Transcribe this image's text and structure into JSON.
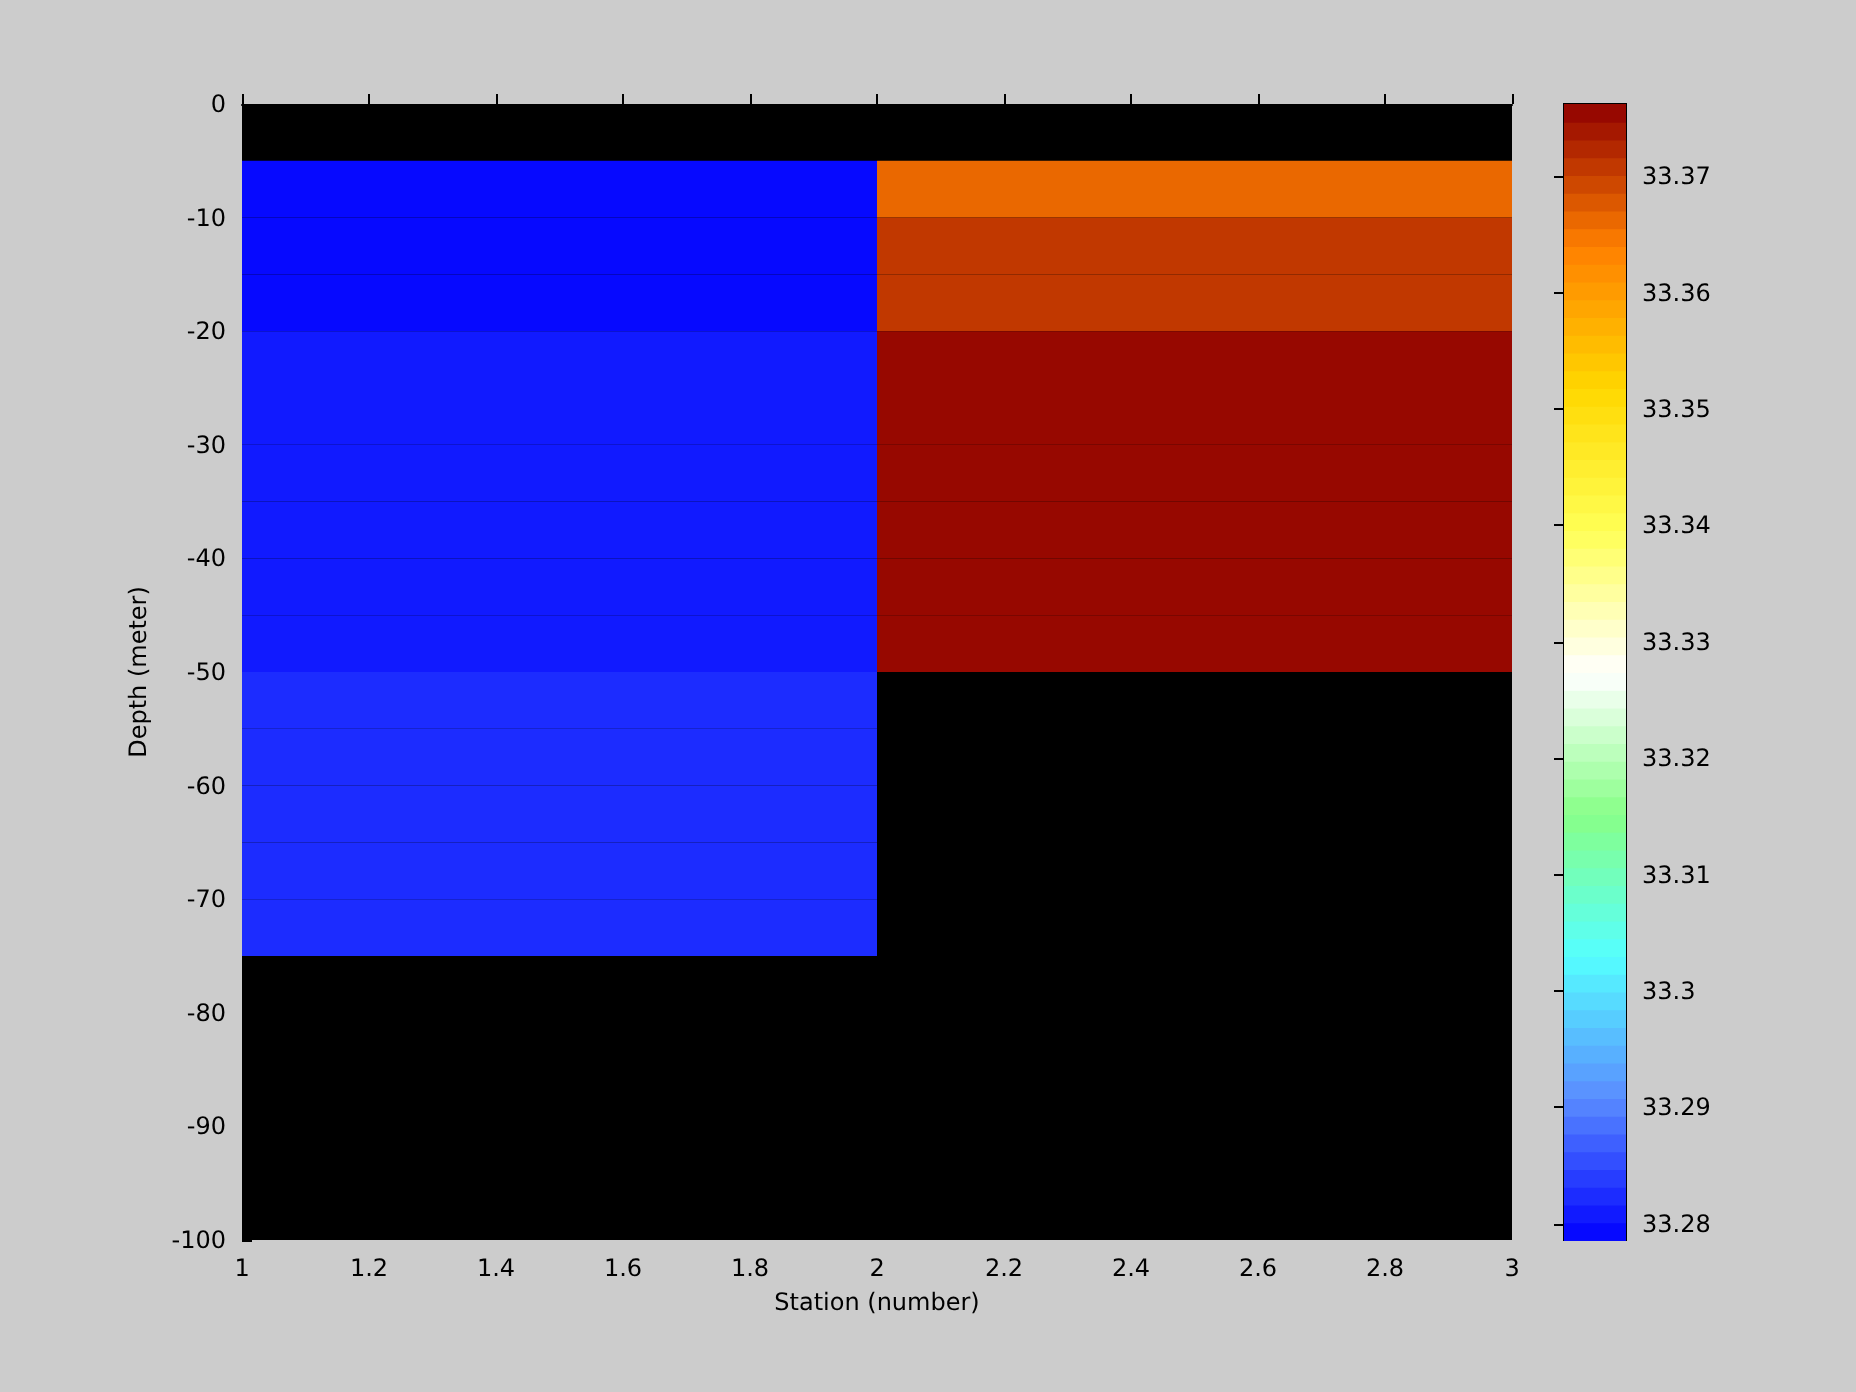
{
  "chart_data": {
    "type": "heatmap",
    "xlabel": "Station (number)",
    "ylabel": "Depth (meter)",
    "x": [
      1.5,
      2.5
    ],
    "y": [
      -7.5,
      -12.5,
      -17.5,
      -22.5,
      -27.5,
      -32.5,
      -37.5,
      -42.5,
      -47.5,
      -52.5,
      -57.5,
      -62.5,
      -67.5,
      -72.5
    ],
    "cells": [
      [
        33.279,
        33.367
      ],
      [
        33.28,
        33.371
      ],
      [
        33.28,
        33.371
      ],
      [
        33.281,
        33.376
      ],
      [
        33.281,
        33.376
      ],
      [
        33.281,
        33.376
      ],
      [
        33.281,
        33.376
      ],
      [
        33.281,
        33.376
      ],
      [
        33.281,
        33.376
      ],
      [
        33.283,
        null
      ],
      [
        33.283,
        null
      ],
      [
        33.283,
        null
      ],
      [
        33.283,
        null
      ],
      [
        33.283,
        null
      ]
    ],
    "colors": [
      "#0000ff",
      "#5a8cff",
      "#55ffff",
      "#88ff88",
      "#ffffff",
      "#ffff55",
      "#ffd700",
      "#ff8000",
      "#900000"
    ],
    "clim": [
      33.2786,
      33.3762
    ],
    "cticks": [
      33.28,
      33.29,
      {
        "value": 33.3,
        "label": "33.3"
      },
      33.31,
      33.32,
      33.33,
      33.34,
      33.35,
      33.36,
      33.37
    ],
    "xlim": [
      1,
      3
    ],
    "xticks": [
      1,
      1.2,
      1.4,
      1.6,
      1.8,
      2,
      2.2,
      2.4,
      2.6,
      2.8,
      3
    ],
    "ylim": [
      -100,
      0
    ],
    "yticks": [
      -100,
      -90,
      -80,
      -70,
      -60,
      -50,
      -40,
      -30,
      -20,
      -10,
      0
    ]
  }
}
